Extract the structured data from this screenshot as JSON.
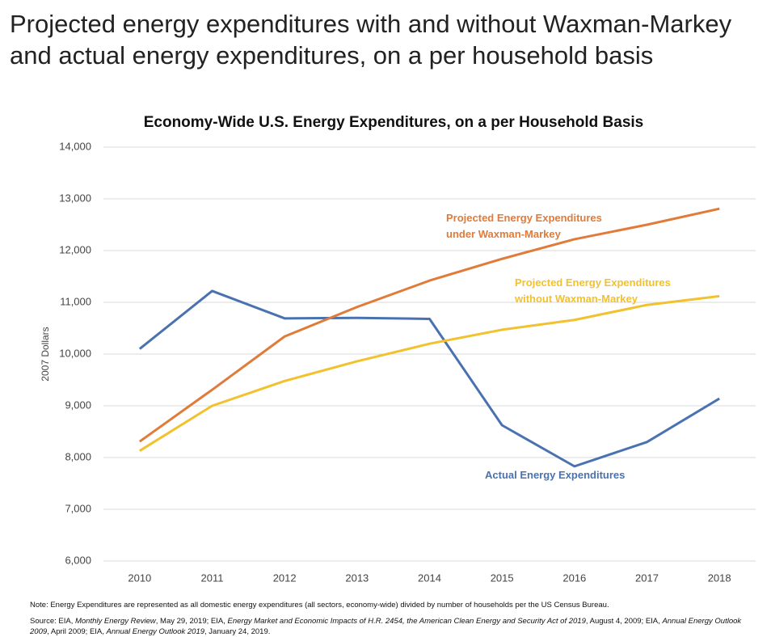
{
  "slide_title": "Projected energy expenditures with and without Waxman-Markey and actual energy expenditures, on a per household basis",
  "chart_data": {
    "type": "line",
    "title": "Economy-Wide U.S. Energy Expenditures, on a per Household Basis",
    "y_label": "2007 Dollars",
    "categories": [
      "2010",
      "2011",
      "2012",
      "2013",
      "2014",
      "2015",
      "2016",
      "2017",
      "2018"
    ],
    "series": [
      {
        "name": "Actual Energy Expenditures",
        "color": "#4a72b0",
        "values": [
          10100,
          11220,
          10690,
          10700,
          10680,
          8625,
          7830,
          8300,
          9140
        ]
      },
      {
        "name": "Projected Energy Expenditures under Waxman-Markey",
        "color": "#e07b39",
        "values": [
          8310,
          9310,
          10340,
          10910,
          11420,
          11840,
          12220,
          12500,
          12810
        ]
      },
      {
        "name": "Projected Energy Expenditures without Waxman-Markey",
        "color": "#f2c12e",
        "values": [
          8130,
          9000,
          9480,
          9860,
          10200,
          10470,
          10660,
          10950,
          11120
        ]
      }
    ],
    "ylim": [
      6000,
      14000
    ],
    "yticks": [
      {
        "value": 6000,
        "label": "6,000"
      },
      {
        "value": 7000,
        "label": "7,000"
      },
      {
        "value": 8000,
        "label": "8,000"
      },
      {
        "value": 9000,
        "label": "9,000"
      },
      {
        "value": 10000,
        "label": "10,000"
      },
      {
        "value": 11000,
        "label": "11,000"
      },
      {
        "value": 12000,
        "label": "12,000"
      },
      {
        "value": 13000,
        "label": "13,000"
      },
      {
        "value": 14000,
        "label": "14,000"
      }
    ],
    "grid": true
  },
  "note": "Note: Energy Expenditures are represented as all domestic energy expenditures (all sectors, economy-wide) divided by number of households per the US Census Bureau.",
  "source": [
    {
      "text": "Source: EIA, ",
      "italic": false
    },
    {
      "text": "Monthly Energy Review",
      "italic": true
    },
    {
      "text": ", May 29, 2019; EIA, ",
      "italic": false
    },
    {
      "text": "Energy Market and Economic Impacts of H.R. 2454, the American Clean Energy and Security Act of 2019",
      "italic": true
    },
    {
      "text": ", August 4, 2009; EIA, ",
      "italic": false
    },
    {
      "text": "Annual Energy Outlook 2009",
      "italic": true
    },
    {
      "text": ", April 2009; EIA, ",
      "italic": false
    },
    {
      "text": "Annual Energy Outlook 2019",
      "italic": true
    },
    {
      "text": ", January 24, 2019.",
      "italic": false
    }
  ]
}
